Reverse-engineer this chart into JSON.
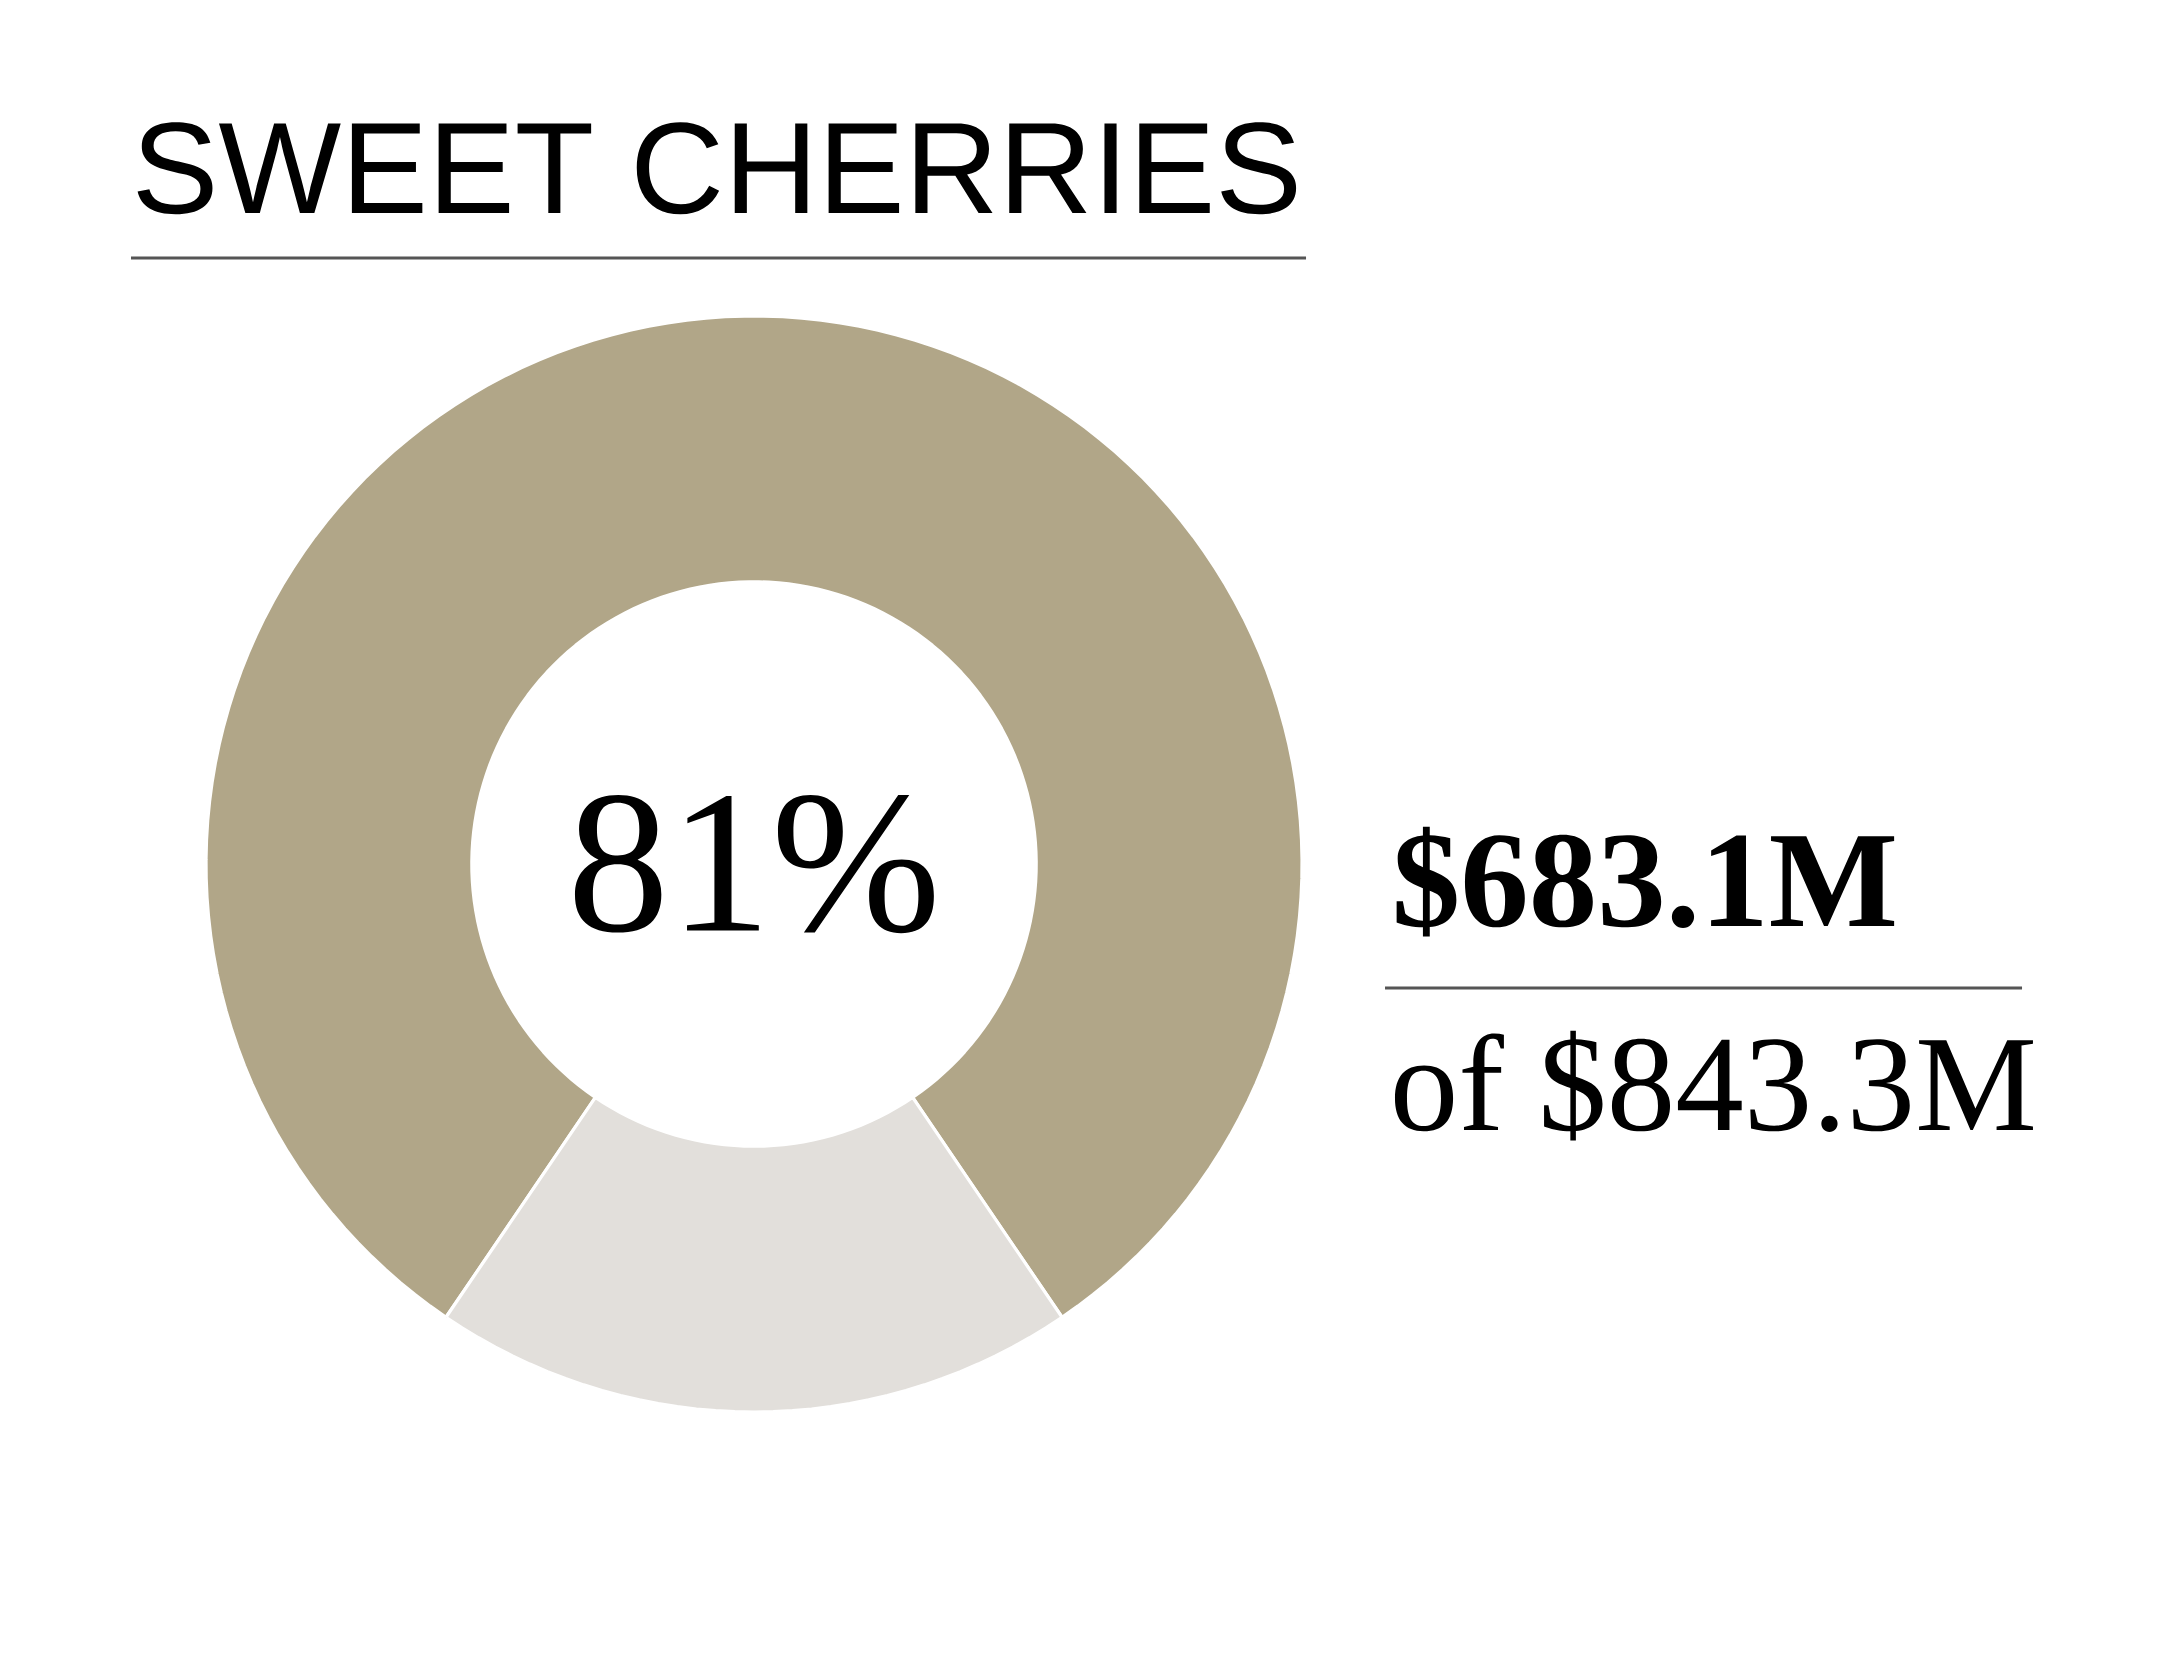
{
  "chart_data": {
    "type": "donut",
    "title": "SWEET CHERRIES",
    "categories": [
      null,
      null
    ],
    "values": [
      81,
      19
    ],
    "colors": [
      "#b1a688",
      "#e2dfdb"
    ],
    "value_labels": [
      "81%",
      null
    ],
    "annotations": [
      "$683.1M",
      "of $843.3M"
    ]
  }
}
